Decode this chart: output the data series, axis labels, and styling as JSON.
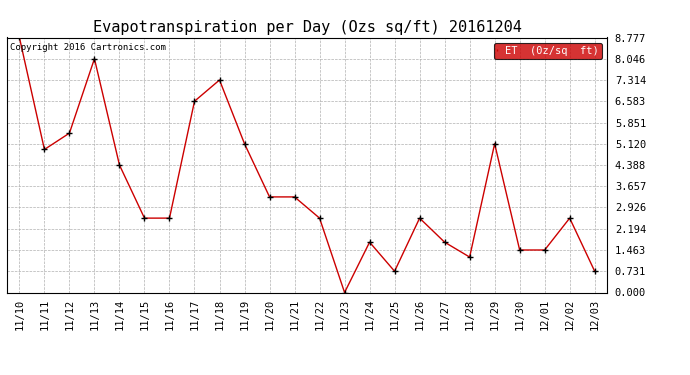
{
  "title": "Evapotranspiration per Day (Ozs sq/ft) 20161204",
  "copyright": "Copyright 2016 Cartronics.com",
  "legend_label": "ET  (0z/sq  ft)",
  "x_labels": [
    "11/10",
    "11/11",
    "11/12",
    "11/13",
    "11/14",
    "11/15",
    "11/16",
    "11/17",
    "11/18",
    "11/19",
    "11/20",
    "11/21",
    "11/22",
    "11/23",
    "11/24",
    "11/25",
    "11/26",
    "11/27",
    "11/28",
    "11/29",
    "11/30",
    "12/01",
    "12/02",
    "12/03"
  ],
  "y_values": [
    8.777,
    4.923,
    5.485,
    8.046,
    4.388,
    2.56,
    2.56,
    6.583,
    7.314,
    5.12,
    3.29,
    3.29,
    2.56,
    0.0,
    1.732,
    0.731,
    2.56,
    1.732,
    1.22,
    5.12,
    1.463,
    1.463,
    2.56,
    0.731
  ],
  "y_ticks": [
    0.0,
    0.731,
    1.463,
    2.194,
    2.926,
    3.657,
    4.388,
    5.12,
    5.851,
    6.583,
    7.314,
    8.046,
    8.777
  ],
  "y_min": 0.0,
  "y_max": 8.777,
  "line_color": "#cc0000",
  "marker_color": "#000000",
  "background_color": "#ffffff",
  "grid_color": "#b0b0b0",
  "title_fontsize": 11,
  "copyright_fontsize": 6.5,
  "tick_fontsize": 7.5,
  "legend_bg": "#cc0000",
  "legend_text_color": "#ffffff",
  "legend_fontsize": 7.5
}
